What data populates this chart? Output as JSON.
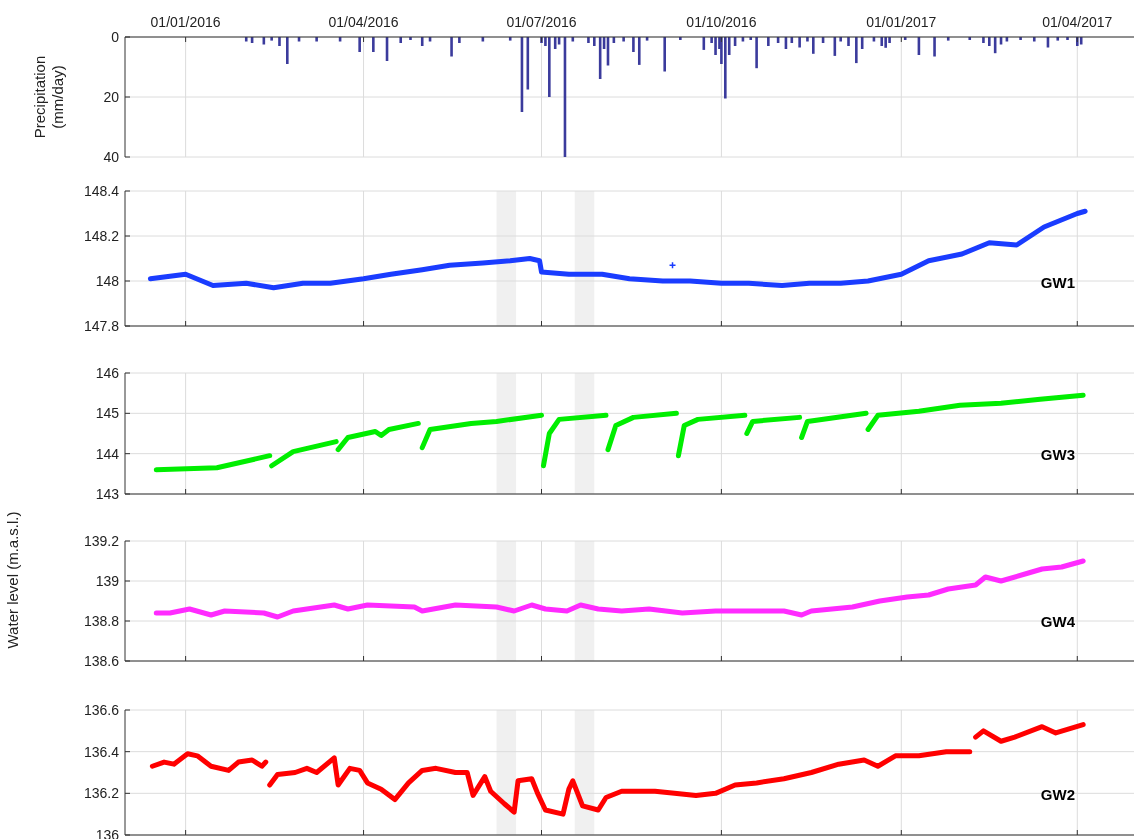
{
  "chart_data": [
    {
      "type": "bar",
      "ylabel": "Precipitation (mm/day)",
      "xlim": [
        "2015-12-01",
        "2017-04-30"
      ],
      "xticks": [
        {
          "value": "2016-01-01",
          "label": "01/01/2016"
        },
        {
          "value": "2016-04-01",
          "label": "01/04/2016"
        },
        {
          "value": "2016-07-01",
          "label": "01/07/2016"
        },
        {
          "value": "2016-10-01",
          "label": "01/10/2016"
        },
        {
          "value": "2017-01-01",
          "label": "01/01/2017"
        },
        {
          "value": "2017-04-01",
          "label": "01/04/2017"
        }
      ],
      "ylim": [
        40,
        0
      ],
      "yticks": [
        0,
        20,
        40
      ],
      "grid": true,
      "series": [
        {
          "color": "#3b3b9c",
          "x": [
            "2016-02-01",
            "2016-02-04",
            "2016-02-10",
            "2016-02-14",
            "2016-02-18",
            "2016-02-22",
            "2016-02-28",
            "2016-03-08",
            "2016-03-20",
            "2016-03-30",
            "2016-04-06",
            "2016-04-13",
            "2016-04-20",
            "2016-04-25",
            "2016-05-01",
            "2016-05-05",
            "2016-05-16",
            "2016-05-20",
            "2016-06-01",
            "2016-06-15",
            "2016-06-21",
            "2016-06-24",
            "2016-07-01",
            "2016-07-03",
            "2016-07-05",
            "2016-07-08",
            "2016-07-10",
            "2016-07-13",
            "2016-07-17",
            "2016-07-25",
            "2016-07-28",
            "2016-07-31",
            "2016-08-02",
            "2016-08-04",
            "2016-08-07",
            "2016-08-12",
            "2016-08-17",
            "2016-08-20",
            "2016-08-24",
            "2016-09-02",
            "2016-09-10",
            "2016-09-22",
            "2016-09-26",
            "2016-09-28",
            "2016-09-30",
            "2016-10-01",
            "2016-10-03",
            "2016-10-05",
            "2016-10-08",
            "2016-10-12",
            "2016-10-16",
            "2016-10-19",
            "2016-10-25",
            "2016-10-30",
            "2016-11-03",
            "2016-11-06",
            "2016-11-10",
            "2016-11-14",
            "2016-11-17",
            "2016-11-22",
            "2016-11-28",
            "2016-12-01",
            "2016-12-05",
            "2016-12-09",
            "2016-12-12",
            "2016-12-18",
            "2016-12-22",
            "2016-12-24",
            "2016-12-26",
            "2017-01-03",
            "2017-01-10",
            "2017-01-18",
            "2017-01-25",
            "2017-02-05",
            "2017-02-12",
            "2017-02-15",
            "2017-02-18",
            "2017-02-21",
            "2017-02-24",
            "2017-03-03",
            "2017-03-10",
            "2017-03-17",
            "2017-03-22",
            "2017-03-27",
            "2017-04-01",
            "2017-04-03"
          ],
          "values": [
            1.5,
            2,
            2.5,
            1.2,
            3,
            9,
            1.5,
            1.5,
            1.5,
            5,
            5,
            8,
            2,
            1,
            3,
            1.5,
            6.5,
            2,
            1.5,
            1.2,
            25,
            17.5,
            2,
            3,
            20,
            4,
            2.5,
            40,
            1.5,
            2,
            3,
            14,
            4,
            9.5,
            2,
            1.5,
            5,
            9.3,
            1.2,
            11.5,
            1,
            4.3,
            2,
            6,
            4,
            9,
            20.5,
            6,
            3,
            1.5,
            1,
            10.4,
            3,
            2,
            4,
            2,
            3.5,
            1.5,
            5.6,
            2,
            6.3,
            1.5,
            3,
            8.7,
            4,
            1.5,
            3,
            3.6,
            2,
            1,
            6,
            6.5,
            1.2,
            1,
            2,
            3,
            5.4,
            2.5,
            1.5,
            1,
            1.5,
            3.5,
            1.2,
            1,
            3,
            2.5
          ]
        }
      ]
    },
    {
      "type": "line",
      "xlim": [
        "2015-12-01",
        "2017-04-30"
      ],
      "xticks": [
        {
          "value": "2016-01-01",
          "label": null
        },
        {
          "value": "2016-04-01",
          "label": null
        },
        {
          "value": "2016-07-01",
          "label": null
        },
        {
          "value": "2016-10-01",
          "label": null
        },
        {
          "value": "2017-01-01",
          "label": null
        },
        {
          "value": "2017-04-01",
          "label": null
        }
      ],
      "ylim": [
        147.8,
        148.4
      ],
      "yticks": [
        147.8,
        148,
        148.2,
        148.4
      ],
      "grid": true,
      "tick_labels": "y",
      "bands": [
        {
          "axis": "x",
          "from": "2016-06-08",
          "to": "2016-06-18",
          "color": "#f0f0f0"
        },
        {
          "axis": "x",
          "from": "2016-07-18",
          "to": "2016-07-28",
          "color": "#f0f0f0"
        }
      ],
      "series": [
        {
          "name": "GW1",
          "color": "#1a3cff",
          "x": [
            "2015-12-14",
            "2016-01-01",
            "2016-01-15",
            "2016-02-01",
            "2016-02-15",
            "2016-03-01",
            "2016-03-15",
            "2016-04-01",
            "2016-04-15",
            "2016-05-01",
            "2016-05-15",
            "2016-06-01",
            "2016-06-15",
            "2016-06-25",
            "2016-06-30",
            "2016-07-01",
            "2016-07-15",
            "2016-08-01",
            "2016-08-15",
            "2016-09-01",
            "2016-09-15",
            "2016-10-01",
            "2016-10-15",
            "2016-11-01",
            "2016-11-15",
            "2016-12-01",
            "2016-12-15",
            "2017-01-01",
            "2017-01-15",
            "2017-02-01",
            "2017-02-15",
            "2017-03-01",
            "2017-03-15",
            "2017-04-01",
            "2017-04-05"
          ],
          "values": [
            148.01,
            148.03,
            147.98,
            147.99,
            147.97,
            147.99,
            147.99,
            148.01,
            148.03,
            148.05,
            148.07,
            148.08,
            148.09,
            148.1,
            148.09,
            148.04,
            148.03,
            148.03,
            148.01,
            148,
            148,
            147.99,
            147.99,
            147.98,
            147.99,
            147.99,
            148,
            148.03,
            148.09,
            148.12,
            148.17,
            148.16,
            148.24,
            148.3,
            148.31
          ]
        },
        {
          "type": "scatter",
          "marker": "cross",
          "color": "#1a3cff",
          "x": [
            "2016-09-06"
          ],
          "values": [
            148.07
          ]
        }
      ]
    },
    {
      "type": "line",
      "xlim": [
        "2015-12-01",
        "2017-04-30"
      ],
      "xticks": [
        {
          "value": "2016-01-01",
          "label": null
        },
        {
          "value": "2016-04-01",
          "label": null
        },
        {
          "value": "2016-07-01",
          "label": null
        },
        {
          "value": "2016-10-01",
          "label": null
        },
        {
          "value": "2017-01-01",
          "label": null
        },
        {
          "value": "2017-04-01",
          "label": null
        }
      ],
      "ylim": [
        143,
        146
      ],
      "yticks": [
        143,
        144,
        145,
        146
      ],
      "grid": true,
      "tick_labels": "y",
      "bands": [
        {
          "axis": "x",
          "from": "2016-06-08",
          "to": "2016-06-18",
          "color": "#f0f0f0"
        },
        {
          "axis": "x",
          "from": "2016-07-18",
          "to": "2016-07-28",
          "color": "#f0f0f0"
        }
      ],
      "series": [
        {
          "name": "GW3",
          "color": "#00ee00",
          "x": [
            "2015-12-17",
            "2016-01-17",
            "2016-02-13",
            "2016-02-13T12:00",
            "2016-02-14",
            "2016-02-25",
            "2016-03-18",
            "2016-03-18T12:00",
            "2016-03-19",
            "2016-03-24",
            "2016-04-07",
            "2016-04-10",
            "2016-04-14",
            "2016-04-29",
            "2016-04-30",
            "2016-05-01",
            "2016-05-05",
            "2016-05-26",
            "2016-06-08",
            "2016-07-01",
            "2016-07-01T12:00",
            "2016-07-02",
            "2016-07-05",
            "2016-07-10",
            "2016-08-03",
            "2016-08-03T12:00",
            "2016-08-04",
            "2016-08-08",
            "2016-08-17",
            "2016-09-08",
            "2016-09-08T12:00",
            "2016-09-09",
            "2016-09-12",
            "2016-09-19",
            "2016-10-13",
            "2016-10-13T12:00",
            "2016-10-14",
            "2016-10-17",
            "2016-11-10",
            "2016-11-10T12:00",
            "2016-11-11",
            "2016-11-14",
            "2016-12-14",
            "2016-12-14T12:00",
            "2016-12-15",
            "2016-12-20",
            "2017-01-10",
            "2017-01-31",
            "2017-02-21",
            "2017-03-13",
            "2017-04-04"
          ],
          "values": [
            143.6,
            143.65,
            143.95,
            null,
            143.7,
            144.05,
            144.3,
            null,
            144.1,
            144.4,
            144.55,
            144.45,
            144.6,
            144.75,
            null,
            144.15,
            144.6,
            144.75,
            144.8,
            144.95,
            null,
            143.7,
            144.5,
            144.85,
            144.95,
            null,
            144.1,
            144.7,
            144.9,
            145,
            null,
            143.95,
            144.7,
            144.85,
            144.95,
            null,
            144.5,
            144.8,
            144.9,
            null,
            144.4,
            144.8,
            145,
            null,
            144.6,
            144.95,
            145.05,
            145.2,
            145.25,
            145.35,
            145.45
          ]
        }
      ]
    },
    {
      "type": "line",
      "ylabel": "Water level (m.a.s.l.)",
      "xlim": [
        "2015-12-01",
        "2017-04-30"
      ],
      "xticks": [
        {
          "value": "2016-01-01",
          "label": null
        },
        {
          "value": "2016-04-01",
          "label": null
        },
        {
          "value": "2016-07-01",
          "label": null
        },
        {
          "value": "2016-10-01",
          "label": null
        },
        {
          "value": "2017-01-01",
          "label": null
        },
        {
          "value": "2017-04-01",
          "label": null
        }
      ],
      "ylim": [
        138.6,
        139.2
      ],
      "yticks": [
        138.6,
        138.8,
        139,
        139.2
      ],
      "grid": true,
      "tick_labels": "y",
      "bands": [
        {
          "axis": "x",
          "from": "2016-06-08",
          "to": "2016-06-18",
          "color": "#f0f0f0"
        },
        {
          "axis": "x",
          "from": "2016-07-18",
          "to": "2016-07-28",
          "color": "#f0f0f0"
        }
      ],
      "series": [
        {
          "name": "GW4",
          "color": "#ff2bff",
          "x": [
            "2015-12-17",
            "2015-12-24",
            "2016-01-03",
            "2016-01-14",
            "2016-01-21",
            "2016-02-10",
            "2016-02-17",
            "2016-02-25",
            "2016-03-17",
            "2016-03-24",
            "2016-04-03",
            "2016-04-27",
            "2016-05-01",
            "2016-05-18",
            "2016-06-08",
            "2016-06-17",
            "2016-06-26",
            "2016-07-03",
            "2016-07-14",
            "2016-07-21",
            "2016-07-30",
            "2016-08-11",
            "2016-08-25",
            "2016-09-11",
            "2016-09-28",
            "2016-10-12",
            "2016-11-02",
            "2016-11-11",
            "2016-11-16",
            "2016-12-07",
            "2016-12-21",
            "2017-01-04",
            "2017-01-15",
            "2017-01-25",
            "2017-02-08",
            "2017-02-13",
            "2017-02-21",
            "2017-03-07",
            "2017-03-14",
            "2017-03-24",
            "2017-04-04"
          ],
          "values": [
            138.84,
            138.84,
            138.86,
            138.83,
            138.85,
            138.84,
            138.82,
            138.85,
            138.88,
            138.86,
            138.88,
            138.87,
            138.85,
            138.88,
            138.87,
            138.85,
            138.88,
            138.86,
            138.85,
            138.88,
            138.86,
            138.85,
            138.86,
            138.84,
            138.85,
            138.85,
            138.85,
            138.83,
            138.85,
            138.87,
            138.9,
            138.92,
            138.93,
            138.96,
            138.98,
            139.02,
            139,
            139.04,
            139.06,
            139.07,
            139.1
          ]
        }
      ]
    },
    {
      "type": "line",
      "xlim": [
        "2015-12-01",
        "2017-04-30"
      ],
      "xticks": [
        {
          "value": "2016-01-01",
          "label": null
        },
        {
          "value": "2016-04-01",
          "label": null
        },
        {
          "value": "2016-07-01",
          "label": null
        },
        {
          "value": "2016-10-01",
          "label": null
        },
        {
          "value": "2017-01-01",
          "label": null
        },
        {
          "value": "2017-04-01",
          "label": null
        }
      ],
      "ylim": [
        136,
        136.6
      ],
      "yticks": [
        136,
        136.2,
        136.4,
        136.6
      ],
      "grid": true,
      "tick_labels": "y",
      "bands": [
        {
          "axis": "x",
          "from": "2016-06-08",
          "to": "2016-06-18",
          "color": "#f0f0f0"
        },
        {
          "axis": "x",
          "from": "2016-07-18",
          "to": "2016-07-28",
          "color": "#f0f0f0"
        }
      ],
      "series": [
        {
          "name": "GW2",
          "color": "#ff0000",
          "x": [
            "2015-12-15",
            "2015-12-21",
            "2015-12-26",
            "2016-01-02",
            "2016-01-07",
            "2016-01-14",
            "2016-01-23",
            "2016-01-28",
            "2016-02-04",
            "2016-02-09",
            "2016-02-11",
            "2016-02-12",
            "2016-02-13",
            "2016-02-17",
            "2016-02-26",
            "2016-03-03",
            "2016-03-08",
            "2016-03-17",
            "2016-03-19",
            "2016-03-25",
            "2016-03-30",
            "2016-04-03",
            "2016-04-10",
            "2016-04-17",
            "2016-04-24",
            "2016-05-01",
            "2016-05-08",
            "2016-05-18",
            "2016-05-24",
            "2016-05-27",
            "2016-06-02",
            "2016-06-05",
            "2016-06-12",
            "2016-06-17",
            "2016-06-19",
            "2016-06-26",
            "2016-06-29",
            "2016-07-03",
            "2016-07-12",
            "2016-07-15",
            "2016-07-17",
            "2016-07-22",
            "2016-07-30",
            "2016-08-03",
            "2016-08-11",
            "2016-08-28",
            "2016-09-07",
            "2016-09-18",
            "2016-09-28",
            "2016-10-08",
            "2016-10-19",
            "2016-11-02",
            "2016-11-16",
            "2016-11-30",
            "2016-12-13",
            "2016-12-20",
            "2016-12-29",
            "2017-01-10",
            "2017-01-24",
            "2017-02-05",
            "2017-02-06",
            "2017-02-08",
            "2017-02-12",
            "2017-02-21",
            "2017-02-28",
            "2017-03-14",
            "2017-03-21",
            "2017-04-04"
          ],
          "values": [
            136.33,
            136.35,
            136.34,
            136.39,
            136.38,
            136.33,
            136.31,
            136.35,
            136.36,
            136.33,
            136.35,
            null,
            136.24,
            136.29,
            136.3,
            136.32,
            136.3,
            136.37,
            136.24,
            136.32,
            136.31,
            136.25,
            136.22,
            136.17,
            136.25,
            136.31,
            136.32,
            136.3,
            136.3,
            136.19,
            136.28,
            136.21,
            136.15,
            136.11,
            136.26,
            136.27,
            136.2,
            136.12,
            136.1,
            136.22,
            136.26,
            136.14,
            136.12,
            136.18,
            136.21,
            136.21,
            136.2,
            136.19,
            136.2,
            136.24,
            136.25,
            136.27,
            136.3,
            136.34,
            136.36,
            136.33,
            136.38,
            136.38,
            136.4,
            136.4,
            null,
            136.47,
            136.5,
            136.45,
            136.47,
            136.52,
            136.49,
            136.53
          ]
        }
      ]
    }
  ]
}
